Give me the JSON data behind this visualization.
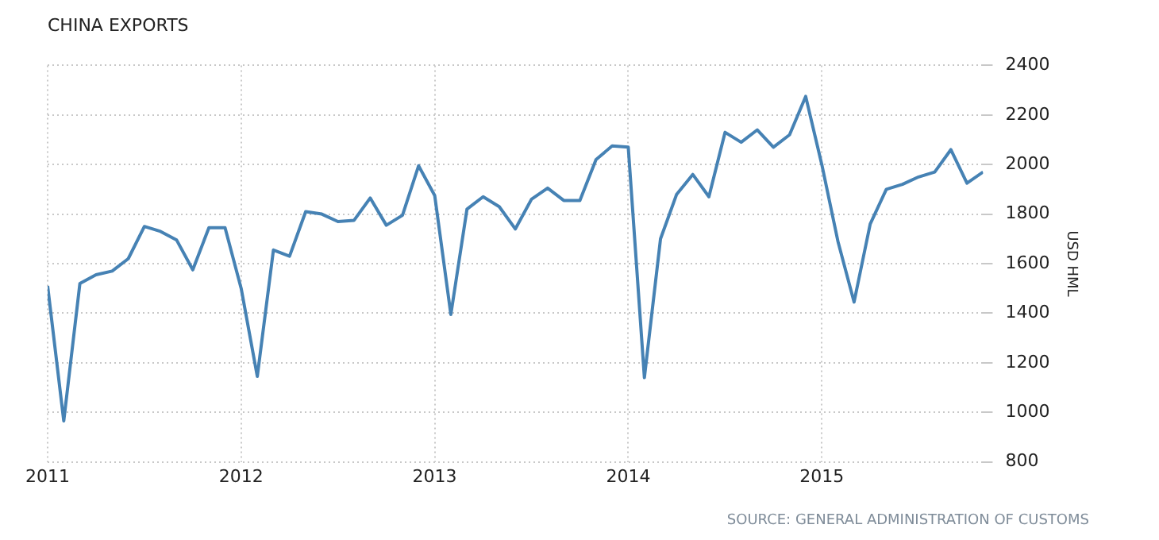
{
  "chart_data": {
    "type": "line",
    "title": "CHINA EXPORTS",
    "ylabel": "USD HML",
    "annotations": [
      "SOURCE: GENERAL ADMINISTRATION OF CUSTOMS"
    ],
    "x": [
      "2011-01",
      "2011-02",
      "2011-03",
      "2011-04",
      "2011-05",
      "2011-06",
      "2011-07",
      "2011-08",
      "2011-09",
      "2011-10",
      "2011-11",
      "2011-12",
      "2012-01",
      "2012-02",
      "2012-03",
      "2012-04",
      "2012-05",
      "2012-06",
      "2012-07",
      "2012-08",
      "2012-09",
      "2012-10",
      "2012-11",
      "2012-12",
      "2013-01",
      "2013-02",
      "2013-03",
      "2013-04",
      "2013-05",
      "2013-06",
      "2013-07",
      "2013-08",
      "2013-09",
      "2013-10",
      "2013-11",
      "2013-12",
      "2014-01",
      "2014-02",
      "2014-03",
      "2014-04",
      "2014-05",
      "2014-06",
      "2014-07",
      "2014-08",
      "2014-09",
      "2014-10",
      "2014-11",
      "2014-12",
      "2015-01",
      "2015-02",
      "2015-03",
      "2015-04",
      "2015-05",
      "2015-06",
      "2015-07",
      "2015-08",
      "2015-09",
      "2015-10",
      "2015-11"
    ],
    "series": [
      {
        "color": "#4682b4",
        "values": [
          1510,
          965,
          1520,
          1555,
          1570,
          1620,
          1750,
          1730,
          1695,
          1575,
          1745,
          1745,
          1500,
          1145,
          1655,
          1630,
          1810,
          1800,
          1770,
          1775,
          1865,
          1755,
          1795,
          1995,
          1875,
          1395,
          1820,
          1870,
          1830,
          1740,
          1860,
          1905,
          1855,
          1855,
          2020,
          2075,
          2070,
          1140,
          1700,
          1880,
          1960,
          1870,
          2130,
          2090,
          2140,
          2070,
          2120,
          2275,
          2000,
          1690,
          1445,
          1760,
          1900,
          1920,
          1950,
          1970,
          2060,
          1925,
          1970
        ]
      }
    ],
    "xlim": [
      "2011-01",
      "2015-11"
    ],
    "xticks": [
      "2011",
      "2012",
      "2013",
      "2014",
      "2015"
    ],
    "ylim": [
      800,
      2400
    ],
    "yticks": [
      800,
      1000,
      1200,
      1400,
      1600,
      1800,
      2000,
      2200,
      2400
    ],
    "grid": true,
    "legend": false,
    "marker": "none",
    "line_style": "solid"
  }
}
